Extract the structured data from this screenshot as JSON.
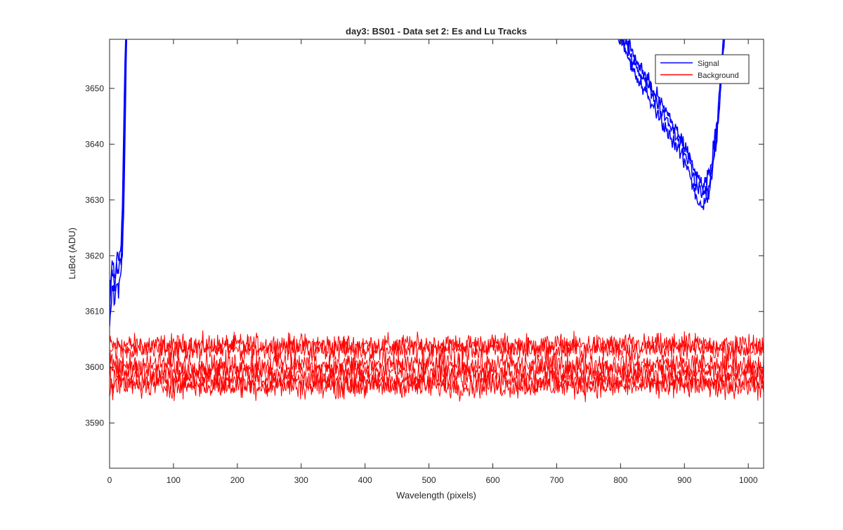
{
  "chart_data": {
    "type": "line",
    "title": "day3: BS01 - Data set 2: Es and Lu Tracks",
    "xlabel": "Wavelength (pixels)",
    "ylabel": "LuBot (ADU)",
    "xlim": [
      0,
      1024
    ],
    "ylim": [
      3581.9,
      3658.8
    ],
    "x_ticks": [
      0,
      100,
      200,
      300,
      400,
      500,
      600,
      700,
      800,
      900,
      1000
    ],
    "y_ticks": [
      3590,
      3600,
      3610,
      3620,
      3630,
      3640,
      3650
    ],
    "grid": false,
    "legend_position": "top-right",
    "colors": {
      "Signal": "#0000ff",
      "Background": "#ff0000"
    },
    "series": [
      {
        "name": "Signal",
        "color": "#0000ff",
        "tracks": [
          {
            "x": [
              0,
              2,
              4,
              6,
              8,
              10,
              12,
              14,
              16,
              18,
              20,
              21,
              22,
              23,
              24,
              25,
              26,
              27
            ],
            "y": [
              3609,
              3614,
              3617,
              3616,
              3614,
              3617,
              3618,
              3617,
              3619,
              3619,
              3624,
              3628,
              3634,
              3642,
              3648,
              3653,
              3657,
              3660
            ]
          },
          {
            "x": [
              0,
              2,
              4,
              6,
              8,
              10,
              12,
              14,
              16,
              18,
              20,
              21,
              22,
              23,
              24,
              25,
              26
            ],
            "y": [
              3612,
              3616,
              3619,
              3618,
              3616,
              3618,
              3620,
              3619,
              3621,
              3622,
              3629,
              3635,
              3642,
              3648,
              3654,
              3658,
              3660
            ]
          },
          {
            "x": [
              0,
              2,
              4,
              6,
              8,
              10,
              12,
              14,
              16,
              18,
              20,
              22,
              23,
              24,
              25,
              26,
              27
            ],
            "y": [
              3607,
              3611,
              3614,
              3613,
              3612,
              3614,
              3615,
              3614,
              3616,
              3617,
              3621,
              3627,
              3633,
              3640,
              3647,
              3654,
              3660
            ]
          },
          {
            "x": [
              800,
              820,
              840,
              860,
              880,
              900,
              910,
              920,
              930,
              940,
              950,
              955,
              960,
              965
            ],
            "y": [
              3660,
              3655,
              3651,
              3647,
              3643,
              3639,
              3636,
              3632,
              3631,
              3633,
              3641,
              3648,
              3656,
              3660
            ]
          },
          {
            "x": [
              805,
              820,
              840,
              860,
              880,
              900,
              910,
              920,
              930,
              940,
              950,
              955,
              960,
              963
            ],
            "y": [
              3660,
              3656,
              3652,
              3648,
              3644,
              3640,
              3637,
              3634,
              3633,
              3635,
              3643,
              3650,
              3658,
              3660
            ]
          },
          {
            "x": [
              795,
              820,
              840,
              860,
              880,
              900,
              910,
              920,
              930,
              940,
              950,
              955,
              960,
              962
            ],
            "y": [
              3660,
              3653,
              3649,
              3645,
              3641,
              3637,
              3634,
              3630,
              3629,
              3632,
              3640,
              3647,
              3656,
              3660
            ]
          }
        ]
      },
      {
        "name": "Background",
        "color": "#ff0000",
        "tracks": [
          {
            "level": 3604.0,
            "amplitude": 1.5
          },
          {
            "level": 3603.2,
            "amplitude": 1.5
          },
          {
            "level": 3600.5,
            "amplitude": 1.6
          },
          {
            "level": 3599.2,
            "amplitude": 1.6
          },
          {
            "level": 3597.6,
            "amplitude": 1.6
          },
          {
            "level": 3596.6,
            "amplitude": 1.6
          }
        ]
      }
    ]
  }
}
